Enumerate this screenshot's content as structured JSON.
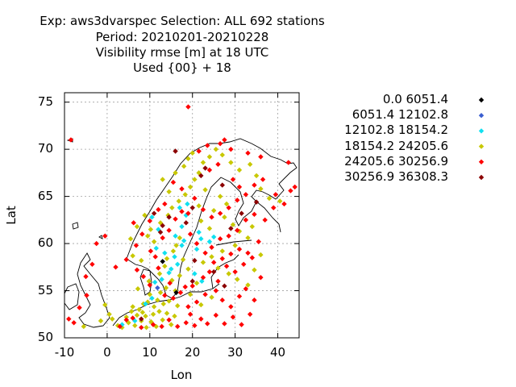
{
  "title_lines": [
    "Exp: aws3dvarspec   Selection: ALL    692 stations",
    "Period: 20210201-20210228",
    "Visibility rmse [m] at  18 UTC",
    "Used {00} + 18"
  ],
  "chart_data": {
    "type": "scatter",
    "title": "Exp: aws3dvarspec   Selection: ALL    692 stations",
    "xlabel": "Lon",
    "ylabel": "Lat",
    "xlim": [
      -10,
      45
    ],
    "ylim": [
      50,
      76
    ],
    "xticks": [
      -10,
      0,
      10,
      20,
      30,
      40
    ],
    "yticks": [
      50,
      55,
      60,
      65,
      70,
      75
    ],
    "grid": true,
    "legend_position": "right",
    "stations_count": 692,
    "series": [
      {
        "name": "0.0 6051.4",
        "color": "#000000",
        "points": [
          [
            16.2,
            54.8
          ],
          [
            13.0,
            58.1
          ]
        ]
      },
      {
        "name": "6051.4 12102.8",
        "color": "#3b5fd0",
        "points": [
          [
            11.8,
            55.3
          ]
        ]
      },
      {
        "name": "12102.8 18154.2",
        "color": "#10e0f0",
        "points": [
          [
            3.5,
            51.4
          ],
          [
            6.5,
            51.8
          ],
          [
            9.0,
            53.6
          ],
          [
            10.5,
            54.2
          ],
          [
            11.2,
            55.9
          ],
          [
            12.8,
            56.2
          ],
          [
            14.5,
            56.9
          ],
          [
            15.0,
            57.3
          ],
          [
            16.5,
            57.8
          ],
          [
            15.8,
            58.6
          ],
          [
            13.5,
            59.0
          ],
          [
            17.5,
            59.8
          ],
          [
            18.0,
            60.3
          ],
          [
            16.0,
            60.8
          ],
          [
            12.0,
            61.5
          ],
          [
            17.5,
            61.8
          ],
          [
            18.5,
            63.0
          ],
          [
            17.0,
            63.8
          ],
          [
            18.8,
            64.2
          ],
          [
            21.5,
            61.2
          ],
          [
            22.0,
            60.5
          ],
          [
            24.0,
            60.2
          ],
          [
            25.0,
            60.7
          ],
          [
            21.0,
            59.4
          ],
          [
            10.5,
            62.8
          ],
          [
            11.5,
            59.5
          ],
          [
            20.5,
            56.8
          ],
          [
            22.2,
            56.0
          ]
        ]
      },
      {
        "name": "18154.2 24205.6",
        "color": "#c8c800",
        "points": [
          [
            -0.5,
            53.5
          ],
          [
            0.5,
            52.5
          ],
          [
            1.2,
            52.0
          ],
          [
            2.5,
            51.3
          ],
          [
            3.5,
            51.1
          ],
          [
            4.5,
            52.2
          ],
          [
            5.0,
            51.6
          ],
          [
            5.7,
            52.8
          ],
          [
            6.0,
            53.3
          ],
          [
            6.5,
            51.3
          ],
          [
            7.0,
            52.4
          ],
          [
            7.5,
            53.0
          ],
          [
            8.0,
            51.8
          ],
          [
            8.3,
            52.7
          ],
          [
            8.5,
            53.6
          ],
          [
            9.0,
            52.3
          ],
          [
            9.2,
            51.1
          ],
          [
            9.5,
            53.8
          ],
          [
            10.0,
            54.6
          ],
          [
            10.3,
            51.7
          ],
          [
            10.8,
            52.5
          ],
          [
            11.0,
            53.3
          ],
          [
            11.5,
            51.2
          ],
          [
            11.8,
            54.0
          ],
          [
            12.2,
            52.8
          ],
          [
            12.5,
            54.8
          ],
          [
            13.0,
            51.9
          ],
          [
            13.2,
            53.6
          ],
          [
            13.8,
            55.3
          ],
          [
            14.0,
            52.6
          ],
          [
            14.5,
            53.9
          ],
          [
            15.0,
            51.4
          ],
          [
            15.2,
            56.1
          ],
          [
            15.8,
            52.3
          ],
          [
            16.0,
            55.0
          ],
          [
            16.5,
            53.4
          ],
          [
            17.0,
            56.6
          ],
          [
            7.2,
            55.2
          ],
          [
            9.8,
            56.0
          ],
          [
            12.3,
            56.8
          ],
          [
            13.5,
            57.6
          ],
          [
            14.0,
            58.4
          ],
          [
            15.5,
            59.2
          ],
          [
            16.2,
            59.8
          ],
          [
            17.0,
            60.6
          ],
          [
            11.0,
            60.2
          ],
          [
            9.5,
            60.8
          ],
          [
            10.2,
            61.5
          ],
          [
            12.5,
            62.2
          ],
          [
            14.3,
            63.0
          ],
          [
            15.2,
            63.8
          ],
          [
            16.8,
            64.5
          ],
          [
            18.3,
            65.2
          ],
          [
            19.5,
            66.0
          ],
          [
            20.5,
            66.8
          ],
          [
            21.5,
            67.5
          ],
          [
            18.0,
            68.2
          ],
          [
            19.0,
            69.0
          ],
          [
            20.0,
            69.6
          ],
          [
            22.5,
            68.6
          ],
          [
            24.0,
            69.2
          ],
          [
            25.5,
            70.0
          ],
          [
            27.0,
            69.4
          ],
          [
            29.0,
            68.6
          ],
          [
            31.0,
            67.8
          ],
          [
            33.5,
            68.4
          ],
          [
            35.0,
            67.2
          ],
          [
            36.0,
            65.8
          ],
          [
            38.0,
            64.8
          ],
          [
            40.5,
            64.5
          ],
          [
            26.5,
            65.0
          ],
          [
            28.0,
            64.2
          ],
          [
            25.0,
            63.5
          ],
          [
            27.5,
            62.8
          ],
          [
            29.5,
            62.0
          ],
          [
            31.0,
            61.3
          ],
          [
            33.0,
            60.6
          ],
          [
            30.0,
            59.8
          ],
          [
            27.0,
            59.2
          ],
          [
            24.5,
            58.6
          ],
          [
            22.5,
            58.0
          ],
          [
            26.0,
            57.4
          ],
          [
            28.5,
            56.8
          ],
          [
            30.5,
            56.2
          ],
          [
            33.0,
            55.6
          ],
          [
            34.5,
            57.2
          ],
          [
            36.0,
            58.8
          ],
          [
            34.0,
            61.8
          ],
          [
            24.0,
            61.6
          ],
          [
            22.0,
            62.4
          ],
          [
            21.5,
            64.0
          ],
          [
            23.0,
            65.7
          ],
          [
            14.5,
            65.5
          ],
          [
            13.0,
            66.8
          ],
          [
            16.0,
            67.5
          ],
          [
            6.0,
            58.7
          ],
          [
            8.0,
            58.2
          ],
          [
            5.5,
            60.5
          ],
          [
            7.0,
            61.8
          ],
          [
            8.8,
            63.0
          ],
          [
            19.5,
            54.6
          ],
          [
            21.0,
            55.8
          ],
          [
            22.0,
            53.5
          ],
          [
            24.5,
            54.3
          ],
          [
            19.0,
            57.3
          ],
          [
            17.8,
            58.3
          ],
          [
            -5.5,
            51.2
          ],
          [
            -1.5,
            51.8
          ]
        ]
      },
      {
        "name": "24205.6 30256.9",
        "color": "#ff0000",
        "points": [
          [
            19.0,
            74.5
          ],
          [
            -8.5,
            71.0
          ],
          [
            -2.5,
            60.0
          ],
          [
            -0.5,
            60.8
          ],
          [
            3.0,
            51.2
          ],
          [
            4.5,
            51.9
          ],
          [
            6.0,
            52.1
          ],
          [
            8.0,
            51.1
          ],
          [
            10.8,
            51.4
          ],
          [
            12.8,
            51.2
          ],
          [
            14.5,
            51.9
          ],
          [
            16.5,
            51.2
          ],
          [
            18.5,
            51.6
          ],
          [
            19.5,
            52.5
          ],
          [
            20.5,
            51.3
          ],
          [
            22.0,
            52.0
          ],
          [
            23.5,
            51.5
          ],
          [
            25.5,
            52.4
          ],
          [
            27.5,
            51.5
          ],
          [
            29.5,
            52.2
          ],
          [
            31.5,
            51.4
          ],
          [
            33.5,
            52.5
          ],
          [
            19.0,
            53.3
          ],
          [
            21.0,
            53.8
          ],
          [
            23.0,
            54.6
          ],
          [
            25.5,
            55.0
          ],
          [
            27.0,
            54.0
          ],
          [
            29.0,
            53.3
          ],
          [
            31.0,
            54.4
          ],
          [
            32.5,
            55.2
          ],
          [
            34.5,
            54.0
          ],
          [
            20.0,
            55.5
          ],
          [
            22.5,
            56.4
          ],
          [
            24.0,
            57.0
          ],
          [
            26.0,
            56.0
          ],
          [
            28.0,
            57.6
          ],
          [
            30.0,
            57.0
          ],
          [
            32.0,
            57.8
          ],
          [
            34.0,
            58.5
          ],
          [
            36.0,
            56.4
          ],
          [
            23.0,
            59.0
          ],
          [
            25.0,
            58.0
          ],
          [
            27.0,
            58.4
          ],
          [
            29.0,
            58.9
          ],
          [
            31.0,
            59.4
          ],
          [
            33.0,
            59.0
          ],
          [
            35.5,
            60.2
          ],
          [
            24.5,
            59.6
          ],
          [
            26.5,
            60.5
          ],
          [
            28.5,
            60.8
          ],
          [
            30.5,
            61.4
          ],
          [
            32.5,
            62.5
          ],
          [
            34.5,
            63.1
          ],
          [
            37.0,
            62.5
          ],
          [
            39.0,
            63.8
          ],
          [
            41.5,
            64.2
          ],
          [
            43.0,
            65.6
          ],
          [
            44.0,
            66.0
          ],
          [
            42.5,
            68.6
          ],
          [
            36.0,
            69.2
          ],
          [
            33.0,
            69.6
          ],
          [
            29.0,
            70.0
          ],
          [
            26.5,
            70.6
          ],
          [
            23.5,
            70.4
          ],
          [
            21.5,
            69.8
          ],
          [
            27.5,
            71.0
          ],
          [
            20.5,
            64.8
          ],
          [
            22.5,
            63.6
          ],
          [
            24.5,
            62.8
          ],
          [
            26.5,
            63.2
          ],
          [
            28.5,
            63.8
          ],
          [
            30.5,
            64.6
          ],
          [
            32.5,
            65.2
          ],
          [
            34.5,
            66.2
          ],
          [
            21.0,
            60.0
          ],
          [
            19.5,
            61.0
          ],
          [
            19.0,
            63.2
          ],
          [
            17.5,
            65.8
          ],
          [
            15.5,
            66.5
          ],
          [
            13.5,
            64.2
          ],
          [
            12.0,
            63.6
          ],
          [
            10.0,
            62.4
          ],
          [
            8.2,
            61.0
          ],
          [
            6.2,
            62.2
          ],
          [
            10.2,
            59.2
          ],
          [
            11.3,
            58.6
          ],
          [
            7.0,
            57.2
          ],
          [
            8.5,
            56.5
          ],
          [
            10.0,
            55.6
          ],
          [
            13.5,
            54.5
          ],
          [
            15.5,
            54.2
          ],
          [
            17.2,
            54.8
          ],
          [
            18.3,
            55.4
          ],
          [
            14.7,
            55.8
          ],
          [
            12.0,
            57.4
          ],
          [
            13.0,
            60.6
          ],
          [
            14.5,
            61.4
          ],
          [
            16.0,
            62.6
          ],
          [
            17.5,
            63.4
          ],
          [
            6.8,
            59.8
          ],
          [
            4.5,
            58.3
          ],
          [
            2.0,
            57.5
          ],
          [
            -5.0,
            56.5
          ],
          [
            -3.5,
            57.8
          ],
          [
            -4.8,
            54.5
          ],
          [
            -6.5,
            53.2
          ],
          [
            -9.0,
            52.0
          ],
          [
            -7.8,
            51.6
          ],
          [
            24.0,
            67.8
          ],
          [
            26.0,
            68.4
          ],
          [
            29.5,
            66.8
          ],
          [
            31.0,
            66.0
          ],
          [
            36.5,
            66.8
          ],
          [
            39.5,
            65.2
          ]
        ]
      },
      {
        "name": "30256.9 36308.3",
        "color": "#8b0000",
        "points": [
          [
            12.5,
            61.2
          ],
          [
            13.0,
            61.9
          ],
          [
            18.5,
            62.2
          ],
          [
            20.0,
            63.8
          ],
          [
            14.5,
            62.8
          ],
          [
            11.0,
            63.2
          ],
          [
            25.0,
            57.0
          ],
          [
            20.0,
            56.0
          ],
          [
            27.5,
            55.5
          ],
          [
            29.0,
            61.6
          ],
          [
            31.5,
            63.2
          ],
          [
            23.0,
            68.0
          ],
          [
            27.0,
            66.2
          ],
          [
            35.0,
            64.4
          ],
          [
            16.0,
            69.8
          ],
          [
            8.0,
            52.0
          ],
          [
            20.5,
            58.2
          ],
          [
            22.0,
            67.2
          ]
        ]
      }
    ]
  }
}
